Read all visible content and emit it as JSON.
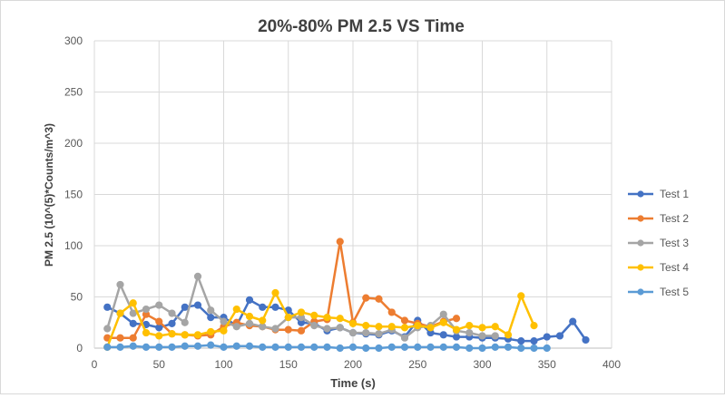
{
  "chart_data": {
    "type": "line",
    "title": "20%-80% PM 2.5 VS Time",
    "xlabel": "Time (s)",
    "ylabel": "PM 2.5 (10^(5)*Counts/m^3)",
    "xlim": [
      0,
      400
    ],
    "ylim": [
      0,
      300
    ],
    "xticks": [
      0,
      50,
      100,
      150,
      200,
      250,
      300,
      350,
      400
    ],
    "yticks": [
      0,
      50,
      100,
      150,
      200,
      250,
      300
    ],
    "grid": true,
    "legend_position": "right",
    "series": [
      {
        "name": "Test 1",
        "color": "#4472c4",
        "x": [
          10,
          20,
          30,
          40,
          50,
          60,
          70,
          80,
          90,
          100,
          110,
          120,
          130,
          140,
          150,
          160,
          170,
          180,
          190,
          200,
          210,
          220,
          230,
          240,
          250,
          260,
          270,
          280,
          290,
          300,
          310,
          320,
          330,
          340,
          350,
          360,
          370,
          380
        ],
        "y": [
          40,
          34,
          24,
          23,
          20,
          24,
          40,
          42,
          30,
          30,
          22,
          47,
          40,
          40,
          37,
          25,
          24,
          17,
          20,
          15,
          14,
          13,
          17,
          11,
          27,
          15,
          13,
          11,
          11,
          10,
          10,
          9,
          7,
          7,
          11,
          12,
          26,
          8
        ]
      },
      {
        "name": "Test 2",
        "color": "#ed7d31",
        "x": [
          10,
          20,
          30,
          40,
          50,
          60,
          70,
          80,
          90,
          100,
          110,
          120,
          130,
          140,
          150,
          160,
          170,
          180,
          190,
          200,
          210,
          220,
          230,
          240,
          250,
          260,
          270,
          280
        ],
        "y": [
          10,
          10,
          10,
          33,
          26,
          14,
          13,
          12,
          13,
          21,
          25,
          22,
          21,
          18,
          18,
          17,
          26,
          28,
          104,
          25,
          49,
          48,
          35,
          27,
          24,
          21,
          26,
          29
        ]
      },
      {
        "name": "Test 3",
        "color": "#a5a5a5",
        "x": [
          10,
          20,
          30,
          40,
          50,
          60,
          70,
          80,
          90,
          100,
          110,
          120,
          130,
          140,
          150,
          160,
          170,
          180,
          190,
          200,
          210,
          220,
          230,
          240,
          250,
          260,
          270,
          280,
          290,
          300,
          310
        ],
        "y": [
          19,
          62,
          34,
          38,
          42,
          34,
          25,
          70,
          37,
          26,
          21,
          24,
          21,
          19,
          30,
          30,
          22,
          19,
          20,
          15,
          15,
          14,
          18,
          10,
          20,
          22,
          33,
          17,
          15,
          12,
          12
        ]
      },
      {
        "name": "Test 4",
        "color": "#ffc000",
        "x": [
          10,
          20,
          30,
          40,
          50,
          60,
          70,
          80,
          90,
          100,
          110,
          120,
          130,
          140,
          150,
          160,
          170,
          180,
          190,
          200,
          210,
          220,
          230,
          240,
          250,
          260,
          270,
          280,
          290,
          300,
          310,
          320,
          330,
          340
        ],
        "y": [
          1,
          34,
          44,
          15,
          12,
          14,
          13,
          13,
          16,
          17,
          38,
          31,
          27,
          54,
          30,
          35,
          32,
          30,
          29,
          24,
          22,
          21,
          21,
          20,
          22,
          20,
          25,
          18,
          22,
          20,
          21,
          13,
          51,
          22
        ]
      },
      {
        "name": "Test 5",
        "color": "#5b9bd5",
        "x": [
          10,
          20,
          30,
          40,
          50,
          60,
          70,
          80,
          90,
          100,
          110,
          120,
          130,
          140,
          150,
          160,
          170,
          180,
          190,
          200,
          210,
          220,
          230,
          240,
          250,
          260,
          270,
          280,
          290,
          300,
          310,
          320,
          330,
          340,
          350
        ],
        "y": [
          1,
          1,
          2,
          1,
          1,
          1,
          2,
          2,
          3,
          1,
          2,
          2,
          1,
          1,
          1,
          1,
          1,
          1,
          0,
          1,
          0,
          0,
          1,
          1,
          1,
          1,
          1,
          1,
          0,
          0,
          1,
          1,
          0,
          0,
          0
        ]
      }
    ]
  }
}
